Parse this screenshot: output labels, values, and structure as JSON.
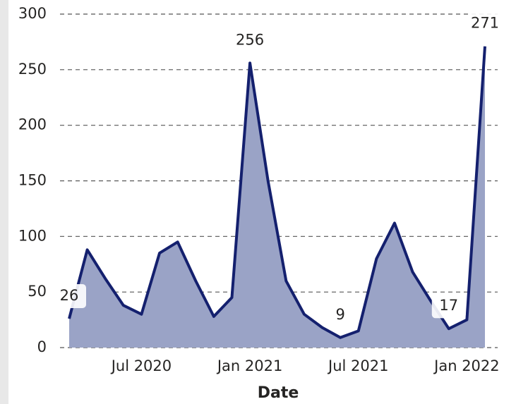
{
  "chart_data": {
    "type": "area",
    "x": [
      "2020-03",
      "2020-04",
      "2020-05",
      "2020-06",
      "2020-07",
      "2020-08",
      "2020-09",
      "2020-10",
      "2020-11",
      "2020-12",
      "2021-01",
      "2021-02",
      "2021-03",
      "2021-04",
      "2021-05",
      "2021-06",
      "2021-07",
      "2021-08",
      "2021-09",
      "2021-10",
      "2021-11",
      "2021-12",
      "2022-01",
      "2022-02"
    ],
    "series": [
      {
        "name": null,
        "color": "#14206e",
        "fill": "#9aa3c6",
        "values": [
          26,
          88,
          62,
          38,
          30,
          85,
          95,
          60,
          28,
          45,
          256,
          150,
          60,
          30,
          18,
          9,
          15,
          80,
          112,
          68,
          42,
          17,
          25,
          271
        ],
        "value_labels": [
          "26",
          null,
          null,
          null,
          null,
          null,
          null,
          null,
          null,
          null,
          "256",
          null,
          null,
          null,
          null,
          "9",
          null,
          null,
          null,
          null,
          null,
          "17",
          null,
          "271"
        ]
      }
    ],
    "x_label": "Date",
    "xlim": [
      "2020-03",
      "2022-02"
    ],
    "xticks": [
      {
        "value": "2020-07",
        "label": "Jul 2020"
      },
      {
        "value": "2021-01",
        "label": "Jan 2021"
      },
      {
        "value": "2021-07",
        "label": "Jul 2021"
      },
      {
        "value": "2022-01",
        "label": "Jan 2022"
      }
    ],
    "ylim": [
      0,
      300
    ],
    "yticks": [
      0,
      50,
      100,
      150,
      200,
      250,
      300
    ],
    "grid": true
  }
}
